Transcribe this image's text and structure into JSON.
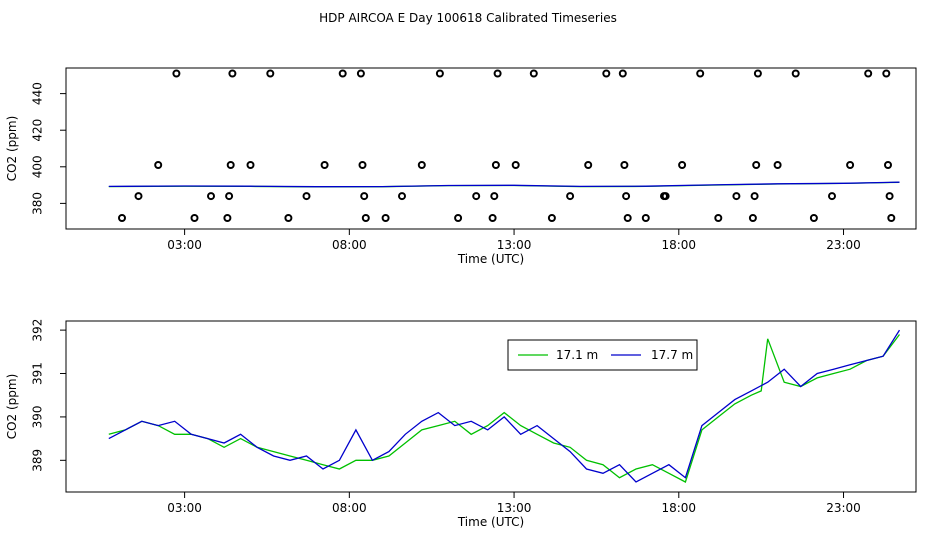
{
  "title": "HDP AIRCOA E  Day 100618  Calibrated Timeseries",
  "colors": {
    "green": "#00c000",
    "blue": "#0000cc"
  },
  "chart_data": [
    {
      "type": "scatter",
      "xlabel": "Time (UTC)",
      "ylabel": "CO2 (ppm)",
      "xlim": [
        -0.6,
        25.2
      ],
      "ylim": [
        366,
        454
      ],
      "x_ticks": [
        3,
        8,
        13,
        18,
        23
      ],
      "x_tick_labels": [
        "03:00",
        "08:00",
        "13:00",
        "18:00",
        "23:00"
      ],
      "y_ticks": [
        380,
        400,
        420,
        440
      ],
      "y_tick_labels": [
        "380",
        "400",
        "420",
        "440"
      ],
      "points": [
        [
          1.1,
          372
        ],
        [
          1.6,
          384
        ],
        [
          2.2,
          401
        ],
        [
          2.75,
          451
        ],
        [
          3.3,
          372
        ],
        [
          3.8,
          384
        ],
        [
          4.3,
          372
        ],
        [
          4.35,
          384
        ],
        [
          4.4,
          401
        ],
        [
          4.45,
          451
        ],
        [
          5.0,
          401
        ],
        [
          5.6,
          451
        ],
        [
          6.15,
          372
        ],
        [
          6.7,
          384
        ],
        [
          7.25,
          401
        ],
        [
          7.8,
          451
        ],
        [
          8.35,
          451
        ],
        [
          8.4,
          401
        ],
        [
          8.45,
          384
        ],
        [
          8.5,
          372
        ],
        [
          9.1,
          372
        ],
        [
          9.6,
          384
        ],
        [
          10.2,
          401
        ],
        [
          10.75,
          451
        ],
        [
          11.3,
          372
        ],
        [
          11.85,
          384
        ],
        [
          12.35,
          372
        ],
        [
          12.4,
          384
        ],
        [
          12.45,
          401
        ],
        [
          12.5,
          451
        ],
        [
          13.05,
          401
        ],
        [
          13.6,
          451
        ],
        [
          14.15,
          372
        ],
        [
          14.7,
          384
        ],
        [
          15.25,
          401
        ],
        [
          15.8,
          451
        ],
        [
          16.3,
          451
        ],
        [
          16.35,
          401
        ],
        [
          16.4,
          384
        ],
        [
          16.45,
          372
        ],
        [
          17.0,
          372
        ],
        [
          17.55,
          384
        ],
        [
          17.6,
          384
        ],
        [
          18.1,
          401
        ],
        [
          18.65,
          451
        ],
        [
          19.2,
          372
        ],
        [
          19.75,
          384
        ],
        [
          20.25,
          372
        ],
        [
          20.3,
          384
        ],
        [
          20.35,
          401
        ],
        [
          20.4,
          451
        ],
        [
          21.0,
          401
        ],
        [
          21.55,
          451
        ],
        [
          22.1,
          372
        ],
        [
          22.65,
          384
        ],
        [
          23.2,
          401
        ],
        [
          23.75,
          451
        ],
        [
          24.3,
          451
        ],
        [
          24.35,
          401
        ],
        [
          24.4,
          384
        ],
        [
          24.45,
          372
        ]
      ],
      "series": [
        {
          "x": [
            0.7,
            3,
            5,
            7,
            9,
            11,
            13,
            15,
            17,
            19,
            21,
            23,
            24.7
          ],
          "values": [
            389.2,
            389.4,
            389.3,
            389.0,
            389.1,
            389.7,
            389.8,
            389.2,
            389.3,
            390.0,
            390.6,
            390.9,
            391.5
          ]
        },
        {
          "x": [
            0.7,
            3,
            5,
            7,
            9,
            11,
            13,
            15,
            17,
            19,
            21,
            23,
            24.7
          ],
          "values": [
            389.3,
            389.5,
            389.4,
            389.1,
            389.2,
            389.8,
            389.9,
            389.3,
            389.4,
            390.1,
            390.7,
            391.0,
            391.6
          ]
        }
      ]
    },
    {
      "type": "line",
      "xlabel": "Time (UTC)",
      "ylabel": "CO2 (ppm)",
      "xlim": [
        -0.6,
        25.2
      ],
      "ylim": [
        388.27,
        392.21
      ],
      "x_ticks": [
        3,
        8,
        13,
        18,
        23
      ],
      "x_tick_labels": [
        "03:00",
        "08:00",
        "13:00",
        "18:00",
        "23:00"
      ],
      "y_ticks": [
        389,
        390,
        391,
        392
      ],
      "y_tick_labels": [
        "389",
        "390",
        "391",
        "392"
      ],
      "legend": "top-right",
      "series": [
        {
          "name": "17.1 m",
          "x": [
            0.7,
            1.2,
            1.7,
            2.2,
            2.7,
            3.2,
            3.7,
            4.2,
            4.7,
            5.2,
            5.7,
            6.2,
            6.7,
            7.2,
            7.7,
            8.2,
            8.7,
            9.2,
            9.7,
            10.2,
            10.7,
            11.2,
            11.7,
            12.2,
            12.7,
            13.2,
            13.7,
            14.2,
            14.7,
            15.2,
            15.7,
            16.2,
            16.7,
            17.2,
            17.7,
            18.2,
            18.7,
            19.2,
            19.7,
            20.2,
            20.5,
            20.7,
            21.2,
            21.7,
            22.2,
            22.7,
            23.2,
            23.7,
            24.2,
            24.7
          ],
          "values": [
            389.6,
            389.7,
            389.9,
            389.8,
            389.6,
            389.6,
            389.5,
            389.3,
            389.5,
            389.3,
            389.2,
            389.1,
            389.0,
            388.9,
            388.8,
            389.0,
            389.0,
            389.1,
            389.4,
            389.7,
            389.8,
            389.9,
            389.6,
            389.8,
            390.1,
            389.8,
            389.6,
            389.4,
            389.3,
            389.0,
            388.9,
            388.6,
            388.8,
            388.9,
            388.7,
            388.5,
            389.7,
            390.0,
            390.3,
            390.5,
            390.6,
            391.8,
            390.8,
            390.7,
            390.9,
            391.0,
            391.1,
            391.3,
            391.4,
            391.9
          ]
        },
        {
          "name": "17.7 m",
          "x": [
            0.7,
            1.2,
            1.7,
            2.2,
            2.7,
            3.2,
            3.7,
            4.2,
            4.7,
            5.2,
            5.7,
            6.2,
            6.7,
            7.2,
            7.7,
            8.2,
            8.7,
            9.2,
            9.7,
            10.2,
            10.7,
            11.2,
            11.7,
            12.2,
            12.7,
            13.2,
            13.7,
            14.2,
            14.7,
            15.2,
            15.7,
            16.2,
            16.7,
            17.2,
            17.7,
            18.2,
            18.7,
            19.2,
            19.7,
            20.2,
            20.7,
            21.2,
            21.7,
            22.2,
            22.7,
            23.2,
            23.7,
            24.2,
            24.7
          ],
          "values": [
            389.5,
            389.7,
            389.9,
            389.8,
            389.9,
            389.6,
            389.5,
            389.4,
            389.6,
            389.3,
            389.1,
            389.0,
            389.1,
            388.8,
            389.0,
            389.7,
            389.0,
            389.2,
            389.6,
            389.9,
            390.1,
            389.8,
            389.9,
            389.7,
            390.0,
            389.6,
            389.8,
            389.5,
            389.2,
            388.8,
            388.7,
            388.9,
            388.5,
            388.7,
            388.9,
            388.6,
            389.8,
            390.1,
            390.4,
            390.6,
            390.8,
            391.1,
            390.7,
            391.0,
            391.1,
            391.2,
            391.3,
            391.4,
            392.0
          ]
        }
      ]
    }
  ]
}
